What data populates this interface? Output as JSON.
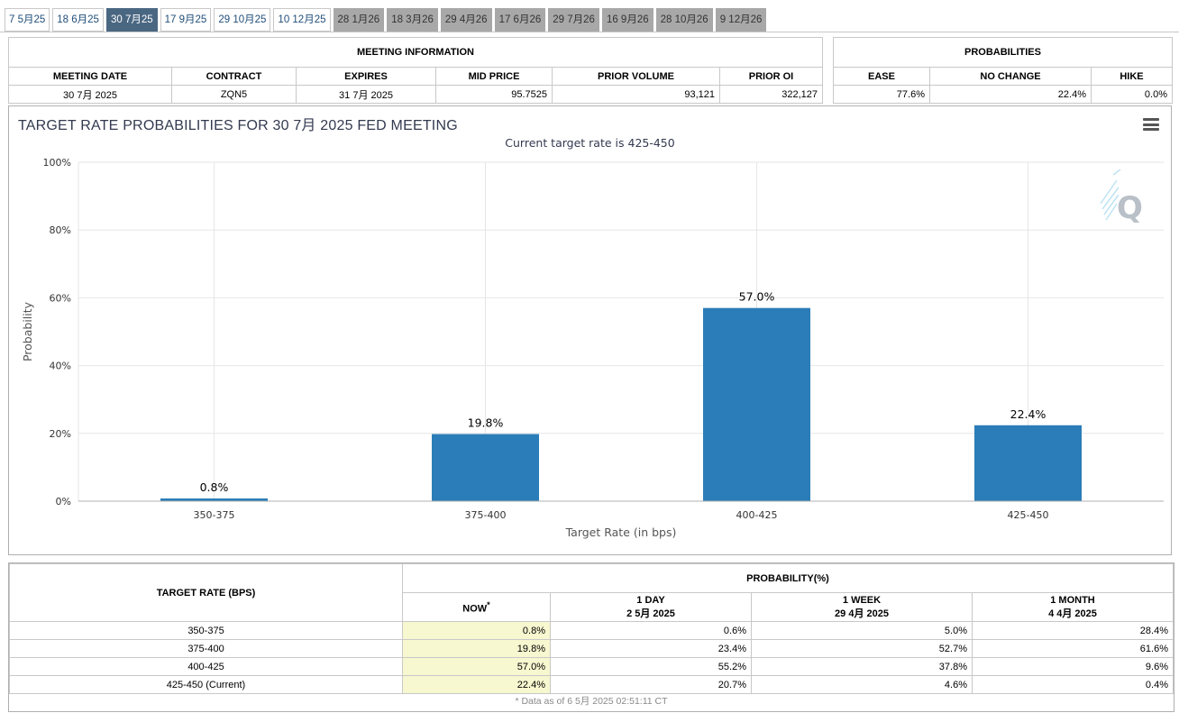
{
  "tabs": [
    {
      "label": "7 5月25",
      "state": "normal"
    },
    {
      "label": "18 6月25",
      "state": "normal"
    },
    {
      "label": "30 7月25",
      "state": "active"
    },
    {
      "label": "17 9月25",
      "state": "normal"
    },
    {
      "label": "29 10月25",
      "state": "normal"
    },
    {
      "label": "10 12月25",
      "state": "normal"
    },
    {
      "label": "28 1月26",
      "state": "disabled"
    },
    {
      "label": "18 3月26",
      "state": "disabled"
    },
    {
      "label": "29 4月26",
      "state": "disabled"
    },
    {
      "label": "17 6月26",
      "state": "disabled"
    },
    {
      "label": "29 7月26",
      "state": "disabled"
    },
    {
      "label": "16 9月26",
      "state": "disabled"
    },
    {
      "label": "28 10月26",
      "state": "disabled"
    },
    {
      "label": "9 12月26",
      "state": "disabled"
    }
  ],
  "meeting_info": {
    "title": "MEETING INFORMATION",
    "headers": [
      "MEETING DATE",
      "CONTRACT",
      "EXPIRES",
      "MID PRICE",
      "PRIOR VOLUME",
      "PRIOR OI"
    ],
    "values": [
      "30 7月 2025",
      "ZQN5",
      "31 7月 2025",
      "95.7525",
      "93,121",
      "322,127"
    ]
  },
  "probabilities": {
    "title": "PROBABILITIES",
    "headers": [
      "EASE",
      "NO CHANGE",
      "HIKE"
    ],
    "values": [
      "77.6%",
      "22.4%",
      "0.0%"
    ]
  },
  "chart": {
    "title": "TARGET RATE PROBABILITIES FOR 30 7月 2025 FED MEETING",
    "subtitle": "Current target rate is 425-450",
    "menu_icon": "hamburger-menu-icon",
    "watermark_icon": "quikstrike-q-logo"
  },
  "chart_data": {
    "type": "bar",
    "categories": [
      "350-375",
      "375-400",
      "400-425",
      "425-450"
    ],
    "values": [
      0.8,
      19.8,
      57.0,
      22.4
    ],
    "data_labels": [
      "0.8%",
      "19.8%",
      "57.0%",
      "22.4%"
    ],
    "xlabel": "Target Rate (in bps)",
    "ylabel": "Probability",
    "ylim": [
      0,
      100
    ],
    "yticks": [
      "0%",
      "20%",
      "40%",
      "60%",
      "80%",
      "100%"
    ],
    "ytick_values": [
      0,
      20,
      40,
      60,
      80,
      100
    ],
    "grid": true,
    "bar_color": "#2a7db8"
  },
  "prob_table": {
    "rate_header": "TARGET RATE (BPS)",
    "group_header": "PROBABILITY(%)",
    "columns": [
      {
        "line1": "NOW",
        "line2": "",
        "mark": "*"
      },
      {
        "line1": "1 DAY",
        "line2": "2 5月 2025",
        "mark": ""
      },
      {
        "line1": "1 WEEK",
        "line2": "29 4月 2025",
        "mark": ""
      },
      {
        "line1": "1 MONTH",
        "line2": "4 4月 2025",
        "mark": ""
      }
    ],
    "rows": [
      {
        "rate": "350-375",
        "values": [
          "0.8%",
          "0.6%",
          "5.0%",
          "28.4%"
        ]
      },
      {
        "rate": "375-400",
        "values": [
          "19.8%",
          "23.4%",
          "52.7%",
          "61.6%"
        ]
      },
      {
        "rate": "400-425",
        "values": [
          "57.0%",
          "55.2%",
          "37.8%",
          "9.6%"
        ]
      },
      {
        "rate": "425-450 (Current)",
        "values": [
          "22.4%",
          "20.7%",
          "4.6%",
          "0.4%"
        ]
      }
    ],
    "footnote": "* Data as of 6 5月 2025 02:51:11 CT"
  }
}
